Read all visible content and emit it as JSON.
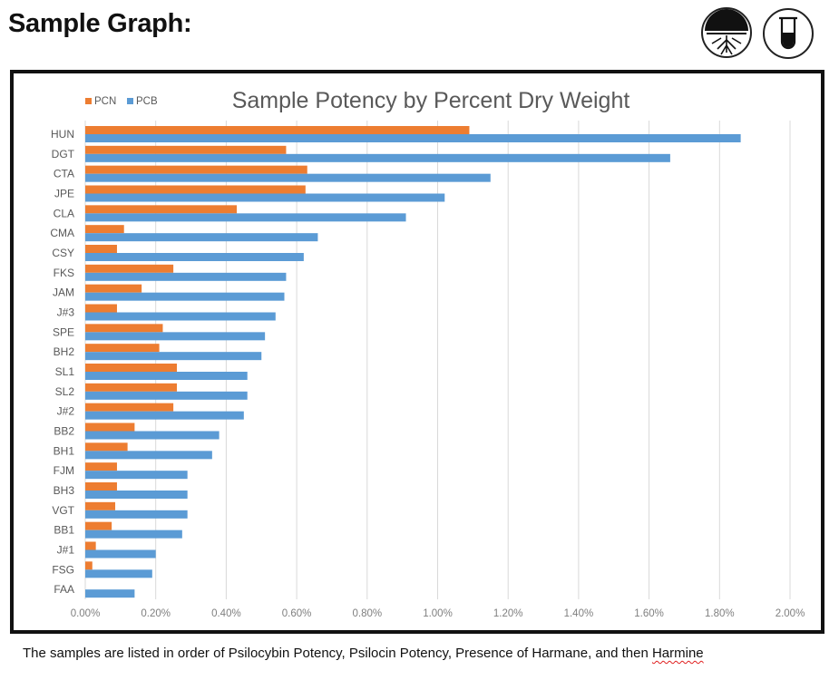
{
  "page": {
    "heading": "Sample Graph:",
    "caption_main": "The samples are listed in order of Psilocybin Potency, Psilocin Potency, Presence of Harmane, and then ",
    "caption_last_word": "Harmine"
  },
  "logos": [
    {
      "icon": "mushroom-roots-icon"
    },
    {
      "icon": "test-tube-icon"
    }
  ],
  "chart_data": {
    "type": "bar",
    "orientation": "horizontal",
    "title": "Sample Potency by Percent Dry Weight",
    "legend_position": "top-left",
    "grid": true,
    "colors": {
      "PCN": "#ed7d31",
      "PCB": "#5b9bd5",
      "grid": "#d9d9d9",
      "text": "#595959"
    },
    "categories": [
      "HUN",
      "DGT",
      "CTA",
      "JPE",
      "CLA",
      "CMA",
      "CSY",
      "FKS",
      "JAM",
      "J#3",
      "SPE",
      "BH2",
      "SL1",
      "SL2",
      "J#2",
      "BB2",
      "BH1",
      "FJM",
      "BH3",
      "VGT",
      "BB1",
      "J#1",
      "FSG",
      "FAA"
    ],
    "series": [
      {
        "name": "PCN",
        "values": [
          1.09,
          0.57,
          0.63,
          0.625,
          0.43,
          0.11,
          0.09,
          0.25,
          0.16,
          0.09,
          0.22,
          0.21,
          0.26,
          0.26,
          0.25,
          0.14,
          0.12,
          0.09,
          0.09,
          0.085,
          0.075,
          0.03,
          0.02,
          0.0
        ]
      },
      {
        "name": "PCB",
        "values": [
          1.86,
          1.66,
          1.15,
          1.02,
          0.91,
          0.66,
          0.62,
          0.57,
          0.565,
          0.54,
          0.51,
          0.5,
          0.46,
          0.46,
          0.45,
          0.38,
          0.36,
          0.29,
          0.29,
          0.29,
          0.275,
          0.2,
          0.19,
          0.14
        ]
      }
    ],
    "xlim": [
      0,
      2.0
    ],
    "xticks": [
      "0.00%",
      "0.20%",
      "0.40%",
      "0.60%",
      "0.80%",
      "1.00%",
      "1.20%",
      "1.40%",
      "1.60%",
      "1.80%",
      "2.00%"
    ]
  }
}
